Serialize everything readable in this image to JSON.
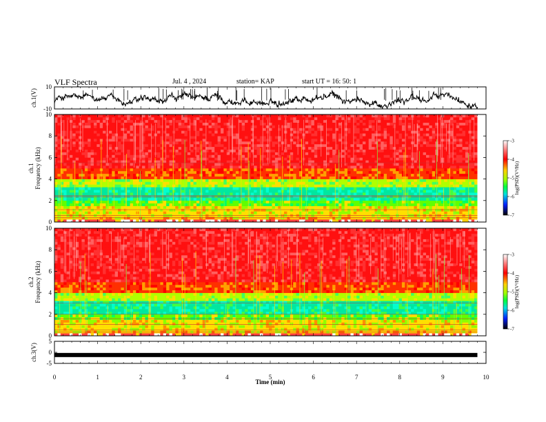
{
  "header": {
    "title": "VLF Spectra",
    "date": "Jul. 4 , 2024",
    "station": "station= KAP",
    "start": "start  UT =   16: 50: 1"
  },
  "chart_data": [
    {
      "type": "line",
      "panel": "ch1-waveform",
      "ylabel": "ch.1(V)",
      "ylim": [
        -10,
        10
      ],
      "yticks": [
        "10",
        "-10"
      ],
      "color": "#000000"
    },
    {
      "type": "heatmap",
      "panel": "ch1-spectrogram",
      "ylabel_line1": "ch.1",
      "ylabel_line2": "Frequency (kHz)",
      "ylim": [
        0,
        10
      ],
      "yticks": [
        "0",
        "2",
        "4",
        "6",
        "8",
        "10"
      ],
      "colorbar": {
        "label": "log(PSD)(V²/Hz)",
        "range": [
          -7,
          -3
        ],
        "ticks": [
          "-3",
          "-4",
          "-5",
          "-6",
          "-7"
        ]
      }
    },
    {
      "type": "heatmap",
      "panel": "ch2-spectrogram",
      "ylabel_line1": "ch.2",
      "ylabel_line2": "Frequency (kHz)",
      "ylim": [
        0,
        10
      ],
      "yticks": [
        "0",
        "2",
        "4",
        "6",
        "8",
        "10"
      ],
      "colorbar": {
        "label": "log(PSD)(V²/Hz)",
        "range": [
          -7,
          -3
        ],
        "ticks": [
          "-3",
          "-4",
          "-5",
          "-6",
          "-7"
        ]
      }
    },
    {
      "type": "line",
      "panel": "ch3-waveform",
      "ylabel": "ch.3(V)",
      "ylim": [
        -5,
        5
      ],
      "yticks": [
        "5",
        "0",
        "-5"
      ],
      "level": -1.2,
      "color": "#000000"
    }
  ],
  "xaxis": {
    "label": "Time (min)",
    "xlim": [
      0,
      10
    ],
    "ticks": [
      "0",
      "1",
      "2",
      "3",
      "4",
      "5",
      "6",
      "7",
      "8",
      "9",
      "10"
    ],
    "data_end": 9.8
  }
}
